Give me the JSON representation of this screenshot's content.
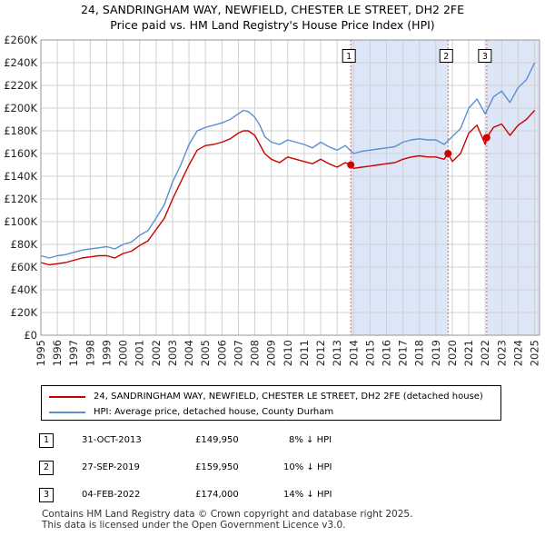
{
  "title_line1": "24, SANDRINGHAM WAY, NEWFIELD, CHESTER LE STREET, DH2 2FE",
  "title_line2": "Price paid vs. HM Land Registry's House Price Index (HPI)",
  "colors": {
    "property": "#cc0000",
    "hpi": "#5b8fd0",
    "shade": "#dde6f7",
    "marker_line": "#e06060",
    "grid": "#d0d0d0"
  },
  "chart_data": {
    "type": "line",
    "title": "24, SANDRINGHAM WAY, NEWFIELD, CHESTER LE STREET, DH2 2FE — Price paid vs. HM Land Registry's House Price Index (HPI)",
    "xlabel": "",
    "ylabel": "",
    "xlim": [
      1995,
      2025.3
    ],
    "ylim": [
      0,
      260000
    ],
    "grid": true,
    "x_ticks": [
      1995,
      1996,
      1997,
      1998,
      1999,
      2000,
      2001,
      2002,
      2003,
      2004,
      2005,
      2006,
      2007,
      2008,
      2009,
      2010,
      2011,
      2012,
      2013,
      2014,
      2015,
      2016,
      2017,
      2018,
      2019,
      2020,
      2021,
      2022,
      2023,
      2024,
      2025
    ],
    "y_ticks": [
      0,
      20000,
      40000,
      60000,
      80000,
      100000,
      120000,
      140000,
      160000,
      180000,
      200000,
      220000,
      240000,
      260000
    ],
    "y_tick_labels": [
      "£0",
      "£20K",
      "£40K",
      "£60K",
      "£80K",
      "£100K",
      "£120K",
      "£140K",
      "£160K",
      "£180K",
      "£200K",
      "£220K",
      "£240K",
      "£260K"
    ],
    "shaded_regions": [
      [
        2013.83,
        2019.74
      ],
      [
        2022.09,
        2025.3
      ]
    ],
    "series": [
      {
        "name": "HPI: Average price, detached house, County Durham",
        "color": "#5b8fd0",
        "x": [
          1995,
          1995.5,
          1996,
          1996.5,
          1997,
          1997.5,
          1998,
          1998.5,
          1999,
          1999.5,
          2000,
          2000.5,
          2001,
          2001.5,
          2002,
          2002.5,
          2003,
          2003.5,
          2004,
          2004.5,
          2005,
          2005.5,
          2006,
          2006.5,
          2007,
          2007.3,
          2007.6,
          2008,
          2008.3,
          2008.6,
          2009,
          2009.5,
          2010,
          2010.5,
          2011,
          2011.5,
          2012,
          2012.5,
          2013,
          2013.5,
          2014,
          2014.5,
          2015,
          2015.5,
          2016,
          2016.5,
          2017,
          2017.5,
          2018,
          2018.5,
          2019,
          2019.5,
          2020,
          2020.5,
          2021,
          2021.5,
          2022,
          2022.5,
          2023,
          2023.5,
          2024,
          2024.5,
          2025
        ],
        "values": [
          70000,
          68000,
          70000,
          71000,
          73000,
          75000,
          76000,
          77000,
          78000,
          76000,
          80000,
          82000,
          88000,
          92000,
          103000,
          115000,
          135000,
          150000,
          168000,
          180000,
          183000,
          185000,
          187000,
          190000,
          195000,
          198000,
          197000,
          192000,
          185000,
          175000,
          170000,
          168000,
          172000,
          170000,
          168000,
          165000,
          170000,
          166000,
          163000,
          167000,
          160000,
          162000,
          163000,
          164000,
          165000,
          166000,
          170000,
          172000,
          173000,
          172000,
          172000,
          168000,
          175000,
          182000,
          200000,
          208000,
          195000,
          210000,
          215000,
          205000,
          218000,
          225000,
          240000
        ]
      },
      {
        "name": "24, SANDRINGHAM WAY, NEWFIELD, CHESTER LE STREET, DH2 2FE (detached house)",
        "color": "#cc0000",
        "x": [
          1995,
          1995.5,
          1996,
          1996.5,
          1997,
          1997.5,
          1998,
          1998.5,
          1999,
          1999.5,
          2000,
          2000.5,
          2001,
          2001.5,
          2002,
          2002.5,
          2003,
          2003.5,
          2004,
          2004.5,
          2005,
          2005.5,
          2006,
          2006.5,
          2007,
          2007.3,
          2007.6,
          2008,
          2008.3,
          2008.6,
          2009,
          2009.5,
          2010,
          2010.5,
          2011,
          2011.5,
          2012,
          2012.5,
          2013,
          2013.5,
          2013.83,
          2014,
          2014.5,
          2015,
          2015.5,
          2016,
          2016.5,
          2017,
          2017.5,
          2018,
          2018.5,
          2019,
          2019.5,
          2019.74,
          2020,
          2020.5,
          2021,
          2021.5,
          2022,
          2022.09,
          2022.5,
          2023,
          2023.5,
          2024,
          2024.5,
          2025
        ],
        "values": [
          64000,
          62000,
          63000,
          64000,
          66000,
          68000,
          69000,
          70000,
          70000,
          68000,
          72000,
          74000,
          79000,
          83000,
          93000,
          103000,
          120000,
          135000,
          150000,
          163000,
          167000,
          168000,
          170000,
          173000,
          178000,
          180000,
          180000,
          176000,
          168000,
          160000,
          155000,
          152000,
          157000,
          155000,
          153000,
          151000,
          155000,
          151000,
          148000,
          152000,
          149950,
          147000,
          148000,
          149000,
          150000,
          151000,
          152000,
          155000,
          157000,
          158000,
          157000,
          157000,
          155000,
          159950,
          153000,
          160000,
          178000,
          185000,
          168000,
          174000,
          183000,
          186000,
          176000,
          185000,
          190000,
          198000
        ]
      }
    ],
    "sales": [
      {
        "label": "1",
        "x": 2013.83,
        "price": 149950
      },
      {
        "label": "2",
        "x": 2019.74,
        "price": 159950
      },
      {
        "label": "3",
        "x": 2022.09,
        "price": 174000
      }
    ]
  },
  "legend": {
    "property_label": "24, SANDRINGHAM WAY, NEWFIELD, CHESTER LE STREET, DH2 2FE (detached house)",
    "hpi_label": "HPI: Average price, detached house, County Durham"
  },
  "transactions": [
    {
      "num": "1",
      "date": "31-OCT-2013",
      "price": "£149,950",
      "hpi": "8% ↓ HPI"
    },
    {
      "num": "2",
      "date": "27-SEP-2019",
      "price": "£159,950",
      "hpi": "10% ↓ HPI"
    },
    {
      "num": "3",
      "date": "04-FEB-2022",
      "price": "£174,000",
      "hpi": "14% ↓ HPI"
    }
  ],
  "footer": {
    "line1": "Contains HM Land Registry data © Crown copyright and database right 2025.",
    "line2": "This data is licensed under the Open Government Licence v3.0."
  }
}
